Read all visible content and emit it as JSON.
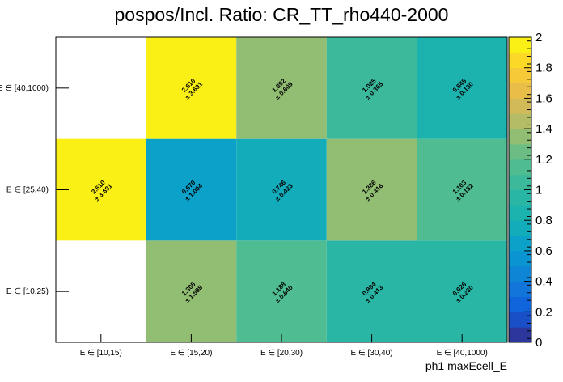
{
  "chart_data": {
    "type": "heatmap",
    "title": "pospos/Incl. Ratio: CR_TT_rho440-2000",
    "xlabel": "ph1 maxEcell_E",
    "ylabel": "",
    "x_categories": [
      "E ∈ [10,15)",
      "E ∈ [15,20)",
      "E ∈ [20,30)",
      "E ∈ [30,40)",
      "E ∈ [40,1000)"
    ],
    "y_categories": [
      "E ∈ [10,25)",
      "E ∈ [25,40)",
      "E ∈ [40,1000)"
    ],
    "zlim": [
      0,
      2
    ],
    "z_ticks": [
      "0",
      "0.2",
      "0.4",
      "0.6",
      "0.8",
      "1",
      "1.2",
      "1.4",
      "1.6",
      "1.8",
      "2"
    ],
    "cells": [
      {
        "x": "E ∈ [15,20)",
        "y": "E ∈ [10,25)",
        "value": 1.305,
        "error": 1.598,
        "value_label": "1.305",
        "error_label": "± 1.598"
      },
      {
        "x": "E ∈ [20,30)",
        "y": "E ∈ [10,25)",
        "value": 1.188,
        "error": 0.64,
        "value_label": "1.188",
        "error_label": "± 0.640"
      },
      {
        "x": "E ∈ [30,40)",
        "y": "E ∈ [10,25)",
        "value": 0.994,
        "error": 0.413,
        "value_label": "0.994",
        "error_label": "± 0.413"
      },
      {
        "x": "E ∈ [40,1000)",
        "y": "E ∈ [10,25)",
        "value": 0.926,
        "error": 0.23,
        "value_label": "0.926",
        "error_label": "± 0.230"
      },
      {
        "x": "E ∈ [10,15)",
        "y": "E ∈ [25,40)",
        "value": 2.61,
        "error": 3.691,
        "value_label": "2.610",
        "error_label": "± 3.691"
      },
      {
        "x": "E ∈ [15,20)",
        "y": "E ∈ [25,40)",
        "value": 0.67,
        "error": 1.004,
        "value_label": "0.670",
        "error_label": "± 1.004"
      },
      {
        "x": "E ∈ [20,30)",
        "y": "E ∈ [25,40)",
        "value": 0.746,
        "error": 0.423,
        "value_label": "0.746",
        "error_label": "± 0.423"
      },
      {
        "x": "E ∈ [30,40)",
        "y": "E ∈ [25,40)",
        "value": 1.386,
        "error": 0.416,
        "value_label": "1.386",
        "error_label": "± 0.416"
      },
      {
        "x": "E ∈ [40,1000)",
        "y": "E ∈ [25,40)",
        "value": 1.103,
        "error": 0.182,
        "value_label": "1.103",
        "error_label": "± 0.182"
      },
      {
        "x": "E ∈ [15,20)",
        "y": "E ∈ [40,1000)",
        "value": 2.61,
        "error": 3.691,
        "value_label": "2.610",
        "error_label": "± 3.691"
      },
      {
        "x": "E ∈ [20,30)",
        "y": "E ∈ [40,1000)",
        "value": 1.392,
        "error": 0.609,
        "value_label": "1.392",
        "error_label": "± 0.609"
      },
      {
        "x": "E ∈ [30,40)",
        "y": "E ∈ [40,1000)",
        "value": 1.025,
        "error": 0.365,
        "value_label": "1.025",
        "error_label": "± 0.365"
      },
      {
        "x": "E ∈ [40,1000)",
        "y": "E ∈ [40,1000)",
        "value": 0.845,
        "error": 0.13,
        "value_label": "0.845",
        "error_label": "± 0.130"
      }
    ],
    "grid": false,
    "legend": "color-scale-right"
  }
}
